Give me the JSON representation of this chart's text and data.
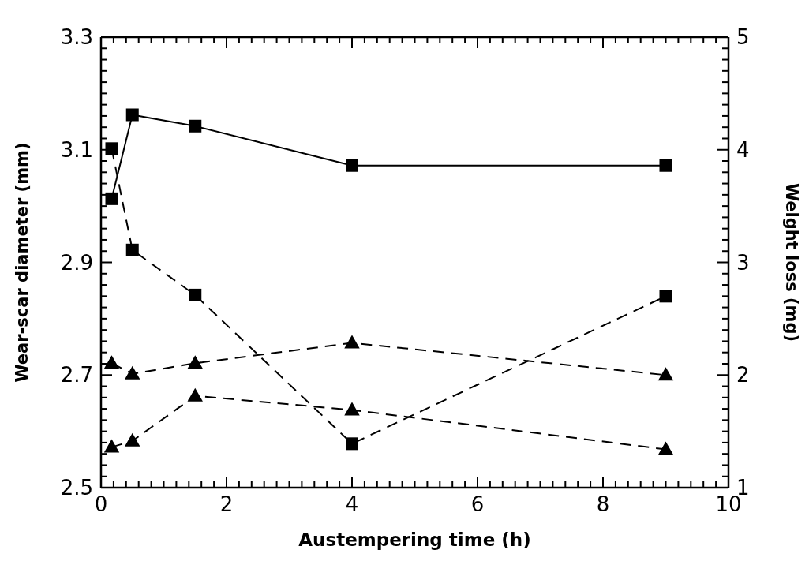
{
  "chart_data": {
    "type": "line",
    "xlabel": "Austempering time (h)",
    "ylabel": "Wear-scar diameter (mm)",
    "y2label": "Weight loss (mg)",
    "x": [
      0.17,
      0.5,
      1.5,
      4,
      9
    ],
    "series": [
      {
        "color": "#000000",
        "marker": "square",
        "line_style": "solid",
        "values": [
          3.013,
          3.162,
          3.142,
          3.072,
          3.072
        ]
      },
      {
        "color": "#000000",
        "marker": "square",
        "line_style": "dashed",
        "values": [
          3.102,
          2.922,
          2.842,
          2.578,
          2.84
        ]
      },
      {
        "color": "#000000",
        "marker": "triangle",
        "line_style": "dashed",
        "values": [
          2.721,
          2.702,
          2.721,
          2.757,
          2.7
        ]
      },
      {
        "color": "#000000",
        "marker": "triangle",
        "line_style": "dashed",
        "values": [
          2.572,
          2.583,
          2.663,
          2.638,
          2.568
        ]
      }
    ],
    "xlim": [
      0,
      10
    ],
    "ylim": [
      2.5,
      3.3
    ],
    "y2lim": [
      1,
      5
    ],
    "xticks": [
      0,
      {
        "value": 0.2,
        "label": null
      },
      {
        "value": 0.4,
        "label": null
      },
      {
        "value": 0.6,
        "label": null
      },
      {
        "value": 0.8,
        "label": null
      },
      {
        "value": 1,
        "label": null
      },
      {
        "value": 1.2,
        "label": null
      },
      {
        "value": 1.4,
        "label": null
      },
      {
        "value": 1.6,
        "label": null
      },
      {
        "value": 1.8,
        "label": null
      },
      2,
      {
        "value": 2.2,
        "label": null
      },
      {
        "value": 2.4,
        "label": null
      },
      {
        "value": 2.6,
        "label": null
      },
      {
        "value": 2.8,
        "label": null
      },
      {
        "value": 3,
        "label": null
      },
      {
        "value": 3.2,
        "label": null
      },
      {
        "value": 3.4,
        "label": null
      },
      {
        "value": 3.6,
        "label": null
      },
      {
        "value": 3.8,
        "label": null
      },
      4,
      {
        "value": 4.2,
        "label": null
      },
      {
        "value": 4.4,
        "label": null
      },
      {
        "value": 4.6,
        "label": null
      },
      {
        "value": 4.8,
        "label": null
      },
      {
        "value": 5,
        "label": null
      },
      {
        "value": 5.2,
        "label": null
      },
      {
        "value": 5.4,
        "label": null
      },
      {
        "value": 5.6,
        "label": null
      },
      {
        "value": 5.8,
        "label": null
      },
      6,
      {
        "value": 6.2,
        "label": null
      },
      {
        "value": 6.4,
        "label": null
      },
      {
        "value": 6.6,
        "label": null
      },
      {
        "value": 6.8,
        "label": null
      },
      {
        "value": 7,
        "label": null
      },
      {
        "value": 7.2,
        "label": null
      },
      {
        "value": 7.4,
        "label": null
      },
      {
        "value": 7.6,
        "label": null
      },
      {
        "value": 7.8,
        "label": null
      },
      8,
      {
        "value": 8.2,
        "label": null
      },
      {
        "value": 8.4,
        "label": null
      },
      {
        "value": 8.6,
        "label": null
      },
      {
        "value": 8.8,
        "label": null
      },
      {
        "value": 9,
        "label": null
      },
      {
        "value": 9.2,
        "label": null
      },
      {
        "value": 9.4,
        "label": null
      },
      {
        "value": 9.6,
        "label": null
      },
      {
        "value": 9.8,
        "label": null
      },
      10
    ],
    "yticks": [
      2.5,
      {
        "value": 2.52,
        "label": null
      },
      {
        "value": 2.54,
        "label": null
      },
      {
        "value": 2.56,
        "label": null
      },
      {
        "value": 2.58,
        "label": null
      },
      {
        "value": 2.6,
        "label": null
      },
      {
        "value": 2.62,
        "label": null
      },
      {
        "value": 2.64,
        "label": null
      },
      {
        "value": 2.66,
        "label": null
      },
      {
        "value": 2.68,
        "label": null
      },
      2.7,
      {
        "value": 2.72,
        "label": null
      },
      {
        "value": 2.74,
        "label": null
      },
      {
        "value": 2.76,
        "label": null
      },
      {
        "value": 2.78,
        "label": null
      },
      {
        "value": 2.8,
        "label": null
      },
      {
        "value": 2.82,
        "label": null
      },
      {
        "value": 2.84,
        "label": null
      },
      {
        "value": 2.86,
        "label": null
      },
      {
        "value": 2.88,
        "label": null
      },
      2.9,
      {
        "value": 2.92,
        "label": null
      },
      {
        "value": 2.94,
        "label": null
      },
      {
        "value": 2.96,
        "label": null
      },
      {
        "value": 2.98,
        "label": null
      },
      {
        "value": 3.0,
        "label": null
      },
      {
        "value": 3.02,
        "label": null
      },
      {
        "value": 3.04,
        "label": null
      },
      {
        "value": 3.06,
        "label": null
      },
      {
        "value": 3.08,
        "label": null
      },
      3.1,
      {
        "value": 3.12,
        "label": null
      },
      {
        "value": 3.14,
        "label": null
      },
      {
        "value": 3.16,
        "label": null
      },
      {
        "value": 3.18,
        "label": null
      },
      {
        "value": 3.2,
        "label": null
      },
      {
        "value": 3.22,
        "label": null
      },
      {
        "value": 3.24,
        "label": null
      },
      {
        "value": 3.26,
        "label": null
      },
      {
        "value": 3.28,
        "label": null
      },
      3.3
    ],
    "y2ticks": [
      1,
      {
        "value": 1.1,
        "label": null
      },
      {
        "value": 1.2,
        "label": null
      },
      {
        "value": 1.3,
        "label": null
      },
      {
        "value": 1.4,
        "label": null
      },
      {
        "value": 1.5,
        "label": null
      },
      {
        "value": 1.6,
        "label": null
      },
      {
        "value": 1.7,
        "label": null
      },
      {
        "value": 1.8,
        "label": null
      },
      {
        "value": 1.9,
        "label": null
      },
      2,
      {
        "value": 2.1,
        "label": null
      },
      {
        "value": 2.2,
        "label": null
      },
      {
        "value": 2.3,
        "label": null
      },
      {
        "value": 2.4,
        "label": null
      },
      {
        "value": 2.5,
        "label": null
      },
      {
        "value": 2.6,
        "label": null
      },
      {
        "value": 2.7,
        "label": null
      },
      {
        "value": 2.8,
        "label": null
      },
      {
        "value": 2.9,
        "label": null
      },
      3,
      {
        "value": 3.1,
        "label": null
      },
      {
        "value": 3.2,
        "label": null
      },
      {
        "value": 3.3,
        "label": null
      },
      {
        "value": 3.4,
        "label": null
      },
      {
        "value": 3.5,
        "label": null
      },
      {
        "value": 3.6,
        "label": null
      },
      {
        "value": 3.7,
        "label": null
      },
      {
        "value": 3.8,
        "label": null
      },
      {
        "value": 3.9,
        "label": null
      },
      4,
      {
        "value": 4.1,
        "label": null
      },
      {
        "value": 4.2,
        "label": null
      },
      {
        "value": 4.3,
        "label": null
      },
      {
        "value": 4.4,
        "label": null
      },
      {
        "value": 4.5,
        "label": null
      },
      {
        "value": 4.6,
        "label": null
      },
      {
        "value": 4.7,
        "label": null
      },
      {
        "value": 4.8,
        "label": null
      },
      {
        "value": 4.9,
        "label": null
      },
      5
    ],
    "grid": false
  }
}
